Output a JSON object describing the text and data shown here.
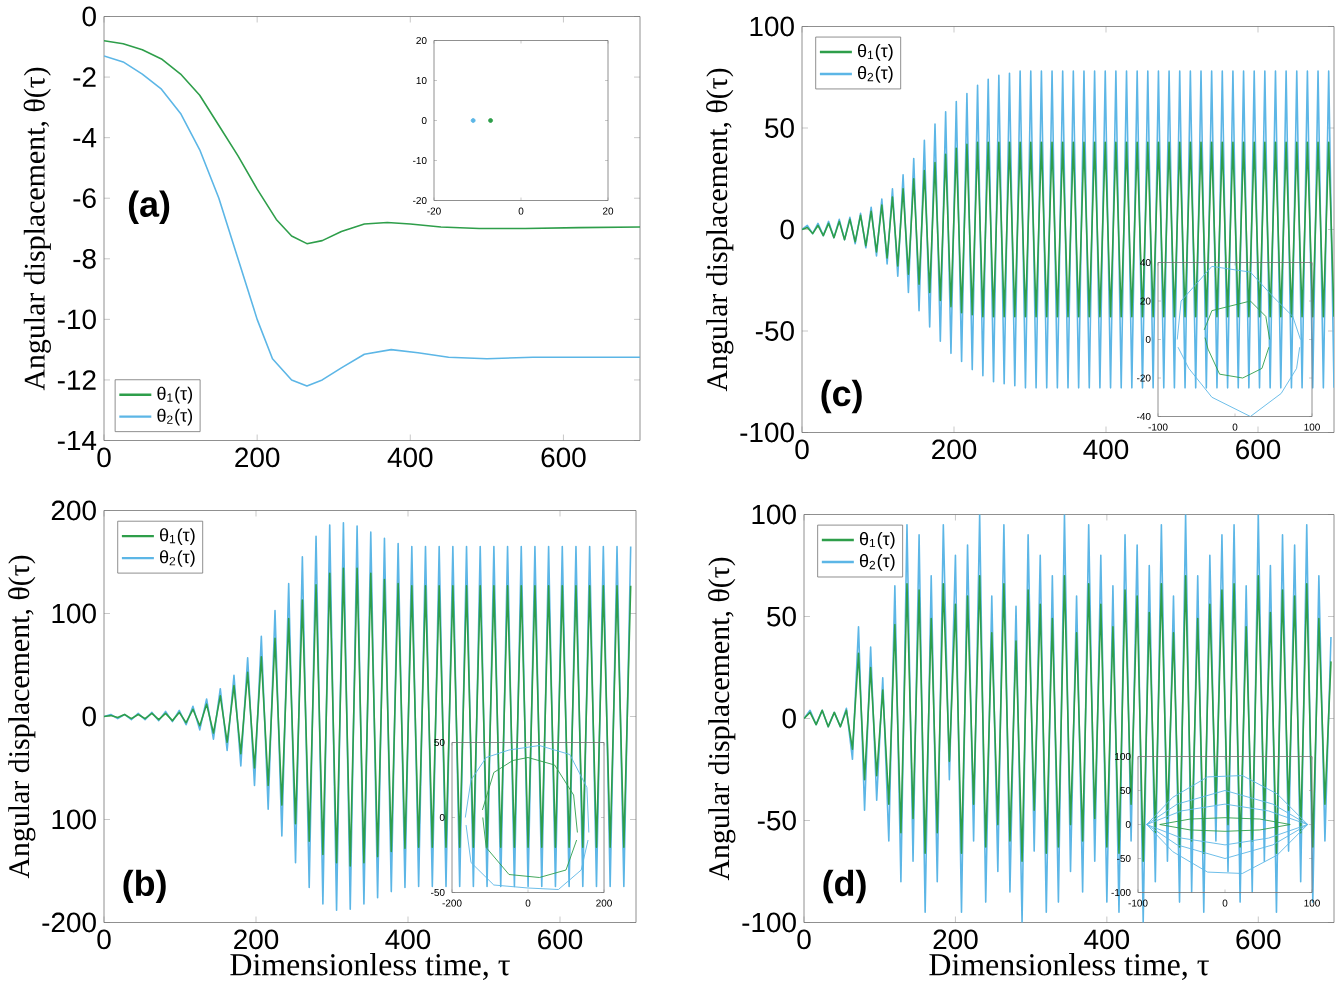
{
  "chart_data": [
    {
      "type": "line",
      "ylabel": "Angular displacement, θ(τ)",
      "xlim": [
        0,
        700
      ],
      "xticks": [
        0,
        200,
        400,
        600
      ],
      "ylim": [
        -14,
        0
      ],
      "yticks": [
        -14,
        -12,
        -10,
        -8,
        -6,
        -4,
        -2,
        0
      ],
      "legend": "bottom left",
      "annotations": [
        "(a)"
      ],
      "series": [
        {
          "name": "θ$_{1}$(τ)",
          "color": "#2e9e4a",
          "x": [
            0,
            25,
            50,
            75,
            100,
            125,
            150,
            175,
            200,
            225,
            245,
            265,
            285,
            310,
            340,
            370,
            400,
            440,
            490,
            550,
            620,
            700
          ],
          "values": [
            -0.8,
            -0.9,
            -1.1,
            -1.4,
            -1.9,
            -2.6,
            -3.6,
            -4.6,
            -5.7,
            -6.7,
            -7.25,
            -7.5,
            -7.4,
            -7.1,
            -6.85,
            -6.8,
            -6.85,
            -6.95,
            -7.0,
            -7.0,
            -6.97,
            -6.95
          ]
        },
        {
          "name": "θ$_{2}$(τ)",
          "color": "#5cb6e6",
          "x": [
            0,
            25,
            50,
            75,
            100,
            125,
            150,
            175,
            200,
            220,
            245,
            265,
            285,
            310,
            340,
            375,
            410,
            450,
            500,
            560,
            700
          ],
          "values": [
            -1.3,
            -1.5,
            -1.9,
            -2.4,
            -3.2,
            -4.4,
            -6.0,
            -8.0,
            -10.0,
            -11.3,
            -12.0,
            -12.2,
            -12.0,
            -11.6,
            -11.15,
            -11.0,
            -11.1,
            -11.25,
            -11.3,
            -11.25,
            -11.25
          ]
        }
      ]
    },
    {
      "type": "scatter",
      "marker": "circle",
      "xlim": [
        -20,
        20
      ],
      "xticks": [
        -20,
        0,
        20
      ],
      "ylim": [
        -20,
        20
      ],
      "yticks": [
        -20,
        -10,
        0,
        10,
        20
      ],
      "series": [
        {
          "color": "#2e9e4a",
          "x": [
            -7
          ],
          "values": [
            0
          ]
        },
        {
          "color": "#5cb6e6",
          "x": [
            -11
          ],
          "values": [
            0
          ]
        }
      ]
    },
    {
      "type": "line",
      "ylabel": "Angular displacement, θ(τ)",
      "xlim": [
        0,
        700
      ],
      "xticks": [
        0,
        200,
        400,
        600
      ],
      "ylim": [
        -100,
        100
      ],
      "yticks": [
        -100,
        -50,
        0,
        50,
        100
      ],
      "legend": "top left",
      "annotations": [
        "(c)"
      ],
      "x": [
        0,
        7,
        14,
        21,
        28,
        35,
        42,
        49,
        56,
        63,
        70,
        77,
        84,
        91,
        98,
        105,
        112,
        119,
        126,
        133,
        140,
        147,
        154,
        161,
        168,
        175,
        182,
        189,
        196,
        203,
        210,
        217,
        224,
        231,
        238,
        245,
        252,
        259,
        266,
        273,
        280,
        287,
        294,
        301,
        308,
        315,
        322,
        329,
        336,
        343,
        350,
        357,
        364,
        371,
        378,
        385,
        392,
        399,
        406,
        413,
        420,
        427,
        434,
        441,
        448,
        455,
        462,
        469,
        476,
        483,
        490,
        497,
        504,
        511,
        518,
        525,
        532,
        539,
        546,
        553,
        560,
        567,
        574,
        581,
        588,
        595,
        602,
        609,
        616,
        623,
        630,
        637,
        644,
        651,
        658,
        665,
        672,
        679,
        686,
        693,
        700
      ],
      "series": [
        {
          "name": "θ$_{1}$(τ)",
          "color": "#2e9e4a",
          "values": [
            0,
            1,
            -2,
            2,
            -3,
            3,
            -4,
            4,
            -5,
            5,
            -6,
            7,
            -8,
            9,
            -11,
            12,
            -14,
            16,
            -18,
            20,
            -22,
            25,
            -27,
            29,
            -31,
            33,
            -35,
            37,
            -38,
            40,
            -41,
            42,
            -42,
            43,
            -43,
            43,
            -43,
            43,
            -43,
            43,
            -43,
            43,
            -43,
            43,
            -43,
            43,
            -43,
            43,
            -43,
            43,
            -43,
            43,
            -43,
            43,
            -43,
            43,
            -43,
            43,
            -43,
            43,
            -43,
            43,
            -43,
            43,
            -43,
            43,
            -43,
            43,
            -43,
            43,
            -43,
            43,
            -43,
            43,
            -43,
            43,
            -43,
            43,
            -43,
            43,
            -43,
            43,
            -43,
            43,
            -43,
            43,
            -43,
            43,
            -43,
            43,
            -43,
            43,
            -43,
            43,
            -43,
            43,
            -43,
            43,
            -43,
            43,
            -43
          ]
        },
        {
          "name": "θ$_{2}$(τ)",
          "color": "#5cb6e6",
          "values": [
            0,
            2,
            -2,
            3,
            -3,
            4,
            -4,
            5,
            -5,
            6,
            -7,
            8,
            -9,
            11,
            -13,
            15,
            -17,
            20,
            -23,
            27,
            -31,
            35,
            -40,
            44,
            -48,
            52,
            -55,
            58,
            -61,
            63,
            -65,
            67,
            -69,
            71,
            -72,
            74,
            -75,
            76,
            -76,
            77,
            -77,
            78,
            -78,
            78,
            -78,
            78,
            -78,
            78,
            -78,
            78,
            -78,
            78,
            -78,
            78,
            -78,
            78,
            -78,
            78,
            -78,
            78,
            -78,
            78,
            -78,
            78,
            -78,
            78,
            -78,
            78,
            -78,
            78,
            -78,
            78,
            -78,
            78,
            -78,
            78,
            -78,
            78,
            -78,
            78,
            -78,
            78,
            -78,
            78,
            -78,
            78,
            -78,
            78,
            -78,
            78,
            -78,
            78,
            -78,
            78,
            -78,
            78,
            -78,
            78,
            -78,
            78,
            -78
          ]
        }
      ]
    },
    {
      "type": "line",
      "xlim": [
        -100,
        100
      ],
      "xticks": [
        -100,
        0,
        100
      ],
      "ylim": [
        -40,
        40
      ],
      "yticks": [
        -40,
        -20,
        0,
        20,
        40
      ],
      "series": [
        {
          "color": "#5cb6e6",
          "x": [
            -75,
            -70,
            -30,
            20,
            50,
            75,
            85
          ],
          "values": [
            0,
            20,
            38,
            35,
            22,
            12,
            0
          ]
        },
        {
          "color": "#5cb6e6",
          "x": [
            -74,
            -60,
            -30,
            20,
            60,
            80,
            84
          ],
          "values": [
            -4,
            -15,
            -30,
            -40,
            -28,
            -15,
            -4
          ]
        },
        {
          "color": "#2e9e4a",
          "x": [
            -40,
            -30,
            0,
            20,
            40,
            45
          ],
          "values": [
            5,
            15,
            18,
            20,
            12,
            0
          ]
        },
        {
          "color": "#2e9e4a",
          "x": [
            -39,
            -35,
            -20,
            10,
            35,
            44
          ],
          "values": [
            1,
            -5,
            -18,
            -20,
            -15,
            -4
          ]
        }
      ]
    },
    {
      "type": "line",
      "ylabel": "Angular displacement, θ(τ)",
      "xlabel": "Dimensionless time, τ",
      "xlim": [
        0,
        700
      ],
      "xticks": [
        0,
        200,
        400,
        600
      ],
      "ylim": [
        -200,
        200
      ],
      "yticks": [
        {
          "value": -200,
          "label": "-200"
        },
        {
          "value": -100,
          "label": "100"
        },
        0,
        100,
        200
      ],
      "legend": "top left",
      "annotations": [
        "(b)"
      ],
      "x": [
        0,
        9,
        18,
        27,
        36,
        45,
        54,
        63,
        72,
        81,
        90,
        99,
        108,
        117,
        126,
        135,
        144,
        153,
        162,
        171,
        180,
        189,
        198,
        207,
        216,
        225,
        234,
        243,
        252,
        261,
        270,
        279,
        288,
        297,
        306,
        315,
        324,
        333,
        342,
        351,
        360,
        369,
        378,
        387,
        396,
        405,
        414,
        423,
        432,
        441,
        450,
        459,
        468,
        477,
        486,
        495,
        504,
        513,
        522,
        531,
        540,
        549,
        558,
        567,
        576,
        585,
        594,
        603,
        612,
        621,
        630,
        639,
        648,
        657,
        666,
        675,
        684,
        693
      ],
      "series": [
        {
          "name": "θ$_{1}$(τ)",
          "color": "#2e9e4a",
          "values": [
            0,
            1,
            -1,
            2,
            -2,
            2,
            -2,
            3,
            -3,
            3,
            -4,
            4,
            -6,
            7,
            -9,
            12,
            -16,
            20,
            -25,
            30,
            -36,
            43,
            -50,
            58,
            -67,
            76,
            -86,
            95,
            -104,
            113,
            -121,
            128,
            -134,
            139,
            -142,
            144,
            -145,
            144,
            -142,
            139,
            -136,
            133,
            -131,
            129,
            -128,
            127,
            -127,
            127,
            -127,
            127,
            -127,
            127,
            -127,
            127,
            -127,
            127,
            -127,
            127,
            -127,
            127,
            -127,
            127,
            -127,
            127,
            -127,
            127,
            -127,
            127,
            -127,
            127,
            -127,
            127,
            -127,
            127,
            -127,
            127,
            -127,
            127
          ]
        },
        {
          "name": "θ$_{2}$(τ)",
          "color": "#5cb6e6",
          "values": [
            0,
            2,
            -2,
            2,
            -3,
            3,
            -3,
            4,
            -4,
            5,
            -5,
            6,
            -8,
            10,
            -13,
            17,
            -22,
            27,
            -33,
            40,
            -48,
            57,
            -67,
            78,
            -90,
            103,
            -116,
            129,
            -142,
            155,
            -166,
            175,
            -182,
            186,
            -188,
            188,
            -187,
            185,
            -182,
            179,
            -176,
            173,
            -170,
            168,
            -166,
            165,
            -165,
            165,
            -165,
            165,
            -165,
            165,
            -165,
            165,
            -165,
            165,
            -165,
            165,
            -165,
            165,
            -165,
            165,
            -165,
            165,
            -165,
            165,
            -165,
            165,
            -165,
            165,
            -165,
            165,
            -165,
            165,
            -165,
            165,
            -165,
            165
          ]
        }
      ]
    },
    {
      "type": "line",
      "xlim": [
        -200,
        200
      ],
      "xticks": [
        -200,
        0,
        200
      ],
      "ylim": [
        -50,
        50
      ],
      "yticks": [
        -50,
        0,
        50
      ],
      "series": [
        {
          "color": "#5cb6e6",
          "x": [
            -165,
            -150,
            -110,
            -50,
            30,
            110,
            155,
            160
          ],
          "values": [
            0,
            25,
            40,
            45,
            48,
            42,
            20,
            -10
          ]
        },
        {
          "color": "#5cb6e6",
          "x": [
            -163,
            -150,
            -90,
            0,
            80,
            140,
            158
          ],
          "values": [
            -5,
            -30,
            -45,
            -47,
            -48,
            -35,
            -15
          ]
        },
        {
          "color": "#2e9e4a",
          "x": [
            -120,
            -90,
            -40,
            0,
            70,
            120,
            130
          ],
          "values": [
            5,
            30,
            38,
            40,
            35,
            15,
            -10
          ]
        },
        {
          "color": "#2e9e4a",
          "x": [
            -119,
            -110,
            -50,
            30,
            100,
            128
          ],
          "values": [
            0,
            -20,
            -38,
            -40,
            -35,
            -15
          ]
        }
      ]
    },
    {
      "type": "line",
      "ylabel": "Angular displacement, θ(τ)",
      "xlabel": "Dimensionless time, τ",
      "xlim": [
        0,
        700
      ],
      "xticks": [
        0,
        200,
        400,
        600
      ],
      "ylim": [
        -100,
        100
      ],
      "yticks": [
        -100,
        -50,
        0,
        50,
        100
      ],
      "legend": "top left",
      "annotations": [
        "(d)"
      ],
      "x": [
        0,
        8,
        16,
        24,
        32,
        40,
        48,
        56,
        64,
        72,
        80,
        88,
        96,
        104,
        112,
        120,
        128,
        136,
        144,
        152,
        160,
        168,
        176,
        184,
        192,
        200,
        208,
        216,
        224,
        232,
        240,
        248,
        256,
        264,
        272,
        280,
        288,
        296,
        304,
        312,
        320,
        328,
        336,
        344,
        352,
        360,
        368,
        376,
        384,
        392,
        400,
        408,
        416,
        424,
        432,
        440,
        448,
        456,
        464,
        472,
        480,
        488,
        496,
        504,
        512,
        520,
        528,
        536,
        544,
        552,
        560,
        568,
        576,
        584,
        592,
        600,
        608,
        616,
        624,
        632,
        640,
        648,
        656,
        664,
        672,
        680,
        688,
        696
      ],
      "series": [
        {
          "name": "θ$_{1}$(τ)",
          "color": "#2e9e4a",
          "values": [
            0,
            3,
            -3,
            4,
            -4,
            3,
            -4,
            4,
            -15,
            32,
            -30,
            25,
            -28,
            14,
            -42,
            46,
            -56,
            66,
            -49,
            63,
            -66,
            49,
            -56,
            66,
            -21,
            56,
            -66,
            60,
            -42,
            70,
            -63,
            42,
            -52,
            66,
            -60,
            38,
            -70,
            63,
            -45,
            56,
            -66,
            49,
            -63,
            70,
            -52,
            42,
            -60,
            66,
            -49,
            56,
            -63,
            45,
            -66,
            63,
            -42,
            60,
            -70,
            52,
            -56,
            66,
            -49,
            42,
            -63,
            70,
            -60,
            49,
            -66,
            56,
            -42,
            63,
            -52,
            66,
            -63,
            45,
            -60,
            70,
            -49,
            52,
            -66,
            63,
            -45,
            60,
            -56,
            66,
            -63,
            49,
            -42,
            28
          ]
        },
        {
          "name": "θ$_{2}$(τ)",
          "color": "#5cb6e6",
          "values": [
            0,
            4,
            -3,
            4,
            -4,
            3,
            -4,
            5,
            -20,
            45,
            -45,
            35,
            -40,
            20,
            -60,
            65,
            -80,
            95,
            -70,
            90,
            -95,
            70,
            -80,
            95,
            -30,
            80,
            -95,
            85,
            -60,
            100,
            -90,
            60,
            -75,
            95,
            -85,
            55,
            -100,
            90,
            -65,
            80,
            -95,
            70,
            -90,
            100,
            -75,
            60,
            -85,
            95,
            -70,
            80,
            -90,
            65,
            -95,
            90,
            -60,
            85,
            -100,
            75,
            -80,
            95,
            -70,
            60,
            -90,
            100,
            -85,
            70,
            -95,
            80,
            -60,
            90,
            -75,
            95,
            -90,
            65,
            -85,
            100,
            -70,
            75,
            -95,
            90,
            -65,
            85,
            -80,
            95,
            -90,
            70,
            -60,
            40
          ]
        }
      ]
    },
    {
      "type": "line",
      "xlim": [
        -100,
        100
      ],
      "xticks": [
        -100,
        0,
        100
      ],
      "ylim": [
        -100,
        100
      ],
      "yticks": [
        -100,
        -50,
        0,
        50,
        100
      ],
      "series": [
        {
          "color": "#5cb6e6",
          "x": [
            -90,
            -60,
            -20,
            20,
            60,
            95
          ],
          "values": [
            0,
            40,
            70,
            72,
            45,
            0
          ]
        },
        {
          "color": "#5cb6e6",
          "x": [
            -90,
            -60,
            -20,
            20,
            60,
            95
          ],
          "values": [
            0,
            -40,
            -70,
            -72,
            -45,
            0
          ]
        },
        {
          "color": "#5cb6e6",
          "x": [
            -90,
            -55,
            0,
            55,
            95
          ],
          "values": [
            0,
            30,
            50,
            30,
            0
          ]
        },
        {
          "color": "#5cb6e6",
          "x": [
            -90,
            -55,
            0,
            55,
            95
          ],
          "values": [
            0,
            -30,
            -50,
            -30,
            0
          ]
        },
        {
          "color": "#5cb6e6",
          "x": [
            -90,
            -50,
            0,
            50,
            95
          ],
          "values": [
            0,
            20,
            30,
            20,
            0
          ]
        },
        {
          "color": "#5cb6e6",
          "x": [
            -90,
            -50,
            0,
            50,
            95
          ],
          "values": [
            0,
            -20,
            -30,
            -20,
            0
          ]
        },
        {
          "color": "#2e9e4a",
          "x": [
            -75,
            -40,
            0,
            40,
            75
          ],
          "values": [
            0,
            8,
            10,
            8,
            0
          ]
        },
        {
          "color": "#2e9e4a",
          "x": [
            -75,
            -40,
            0,
            40,
            75
          ],
          "values": [
            0,
            -8,
            -10,
            -8,
            0
          ]
        }
      ]
    }
  ]
}
